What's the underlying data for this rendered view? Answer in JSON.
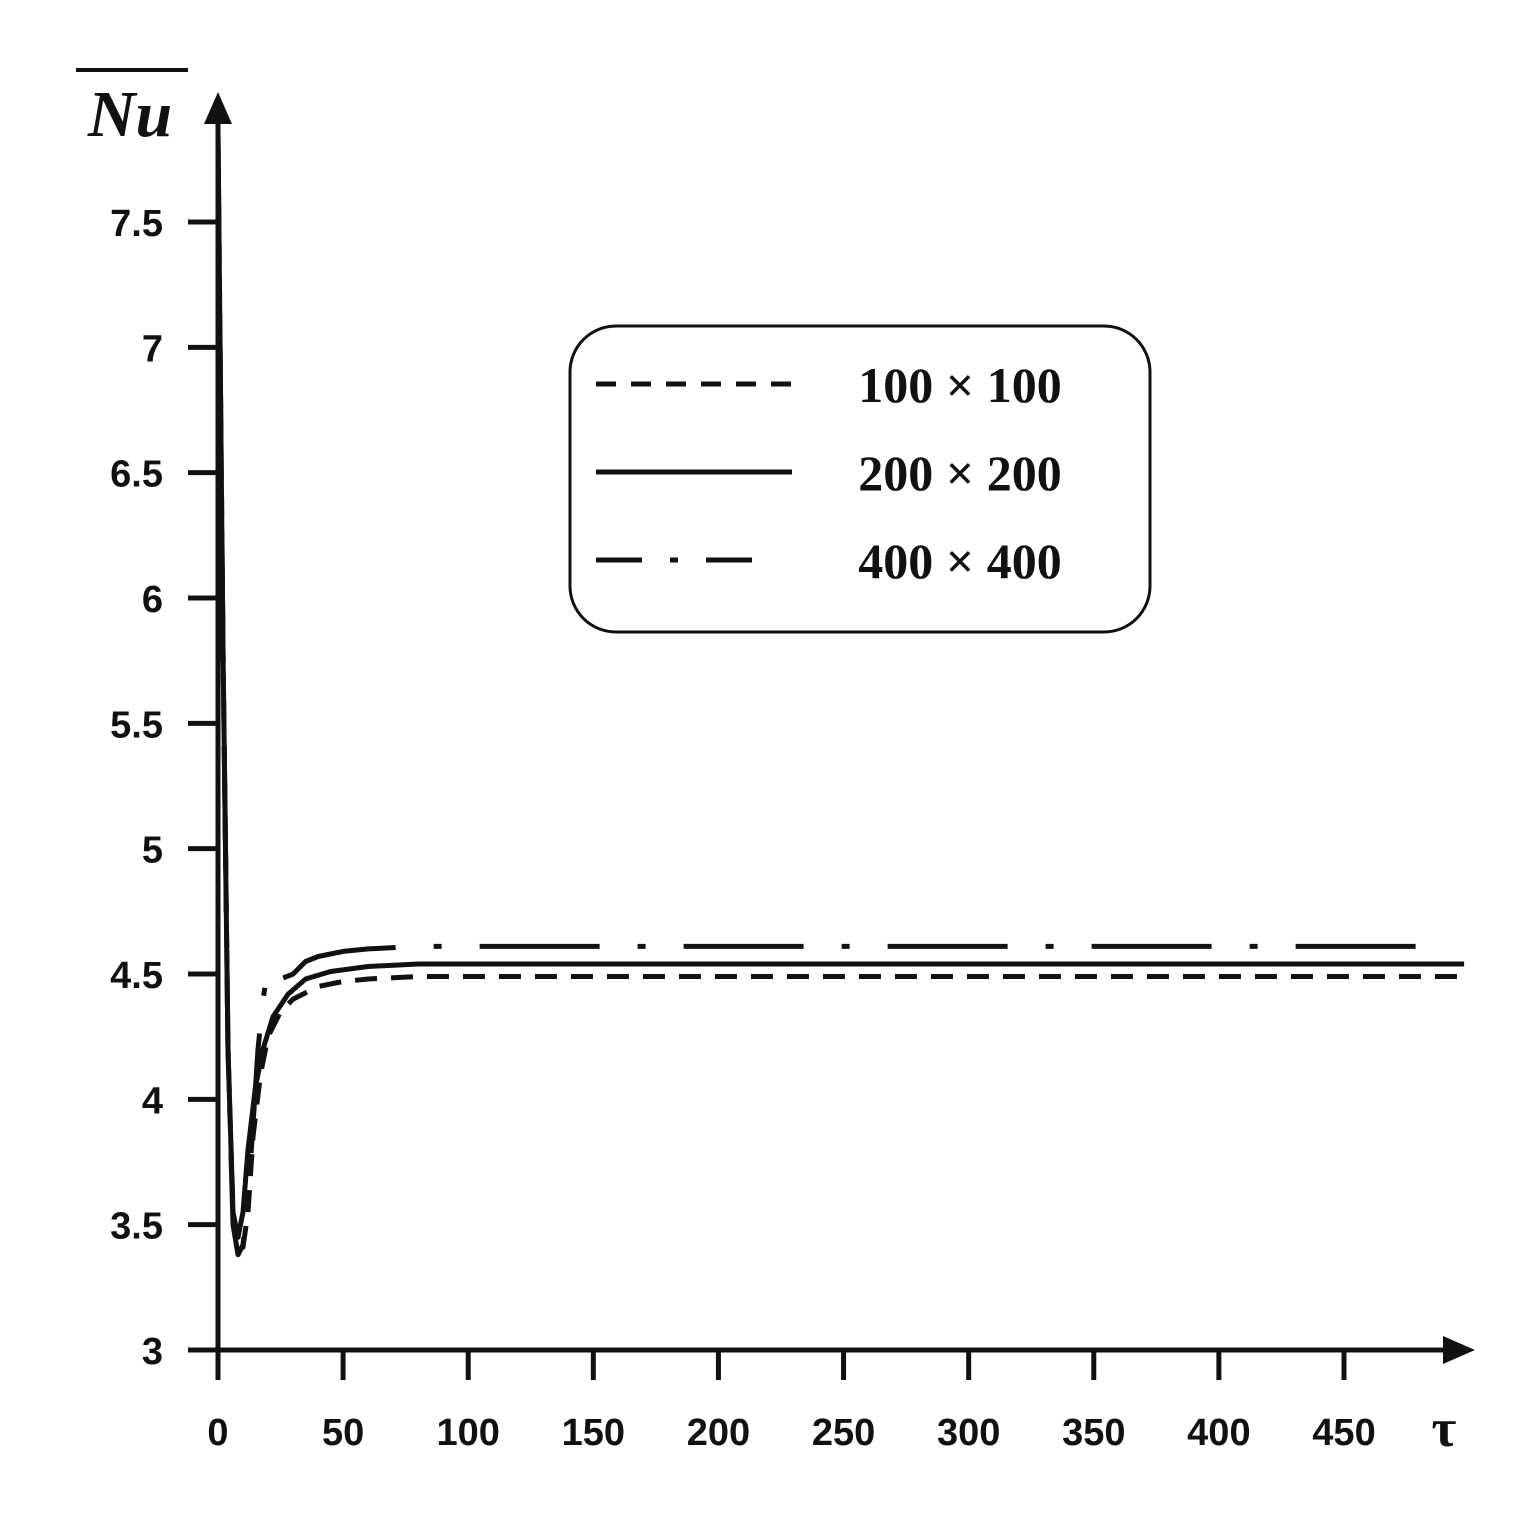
{
  "chart_data": {
    "type": "line",
    "title": "",
    "xlabel": "τ",
    "ylabel": "Nu",
    "ylabel_overline": true,
    "xlim": [
      0,
      500
    ],
    "ylim": [
      3,
      7.9
    ],
    "x_ticks": [
      0,
      50,
      100,
      150,
      200,
      250,
      300,
      350,
      400,
      450
    ],
    "x_tick_labels": [
      "0",
      "50",
      "100",
      "150",
      "200",
      "250",
      "300",
      "350",
      "400",
      "450"
    ],
    "y_ticks": [
      3,
      3.5,
      4,
      4.5,
      5,
      5.5,
      6,
      6.5,
      7,
      7.5
    ],
    "y_tick_labels": [
      "3",
      "3.5",
      "4",
      "4.5",
      "5",
      "5.5",
      "6",
      "6.5",
      "7",
      "7.5"
    ],
    "grid": false,
    "legend_position": "top-center",
    "line_color": "#111111",
    "series": [
      {
        "name": "100 × 100",
        "style": "dashed",
        "points": [
          [
            0,
            7.85
          ],
          [
            2,
            5.8
          ],
          [
            4,
            4.2
          ],
          [
            6,
            3.55
          ],
          [
            8,
            3.42
          ],
          [
            10,
            3.41
          ],
          [
            12,
            3.55
          ],
          [
            14,
            3.85
          ],
          [
            17,
            4.1
          ],
          [
            20,
            4.25
          ],
          [
            25,
            4.35
          ],
          [
            30,
            4.4
          ],
          [
            40,
            4.45
          ],
          [
            50,
            4.47
          ],
          [
            60,
            4.48
          ],
          [
            80,
            4.49
          ],
          [
            100,
            4.49
          ],
          [
            200,
            4.49
          ],
          [
            300,
            4.49
          ],
          [
            400,
            4.49
          ],
          [
            498,
            4.49
          ]
        ]
      },
      {
        "name": "200 × 200",
        "style": "solid",
        "points": [
          [
            0,
            7.85
          ],
          [
            2,
            5.8
          ],
          [
            4,
            4.2
          ],
          [
            6,
            3.55
          ],
          [
            8,
            3.45
          ],
          [
            10,
            3.55
          ],
          [
            12,
            3.8
          ],
          [
            15,
            4.05
          ],
          [
            18,
            4.2
          ],
          [
            22,
            4.33
          ],
          [
            28,
            4.42
          ],
          [
            35,
            4.48
          ],
          [
            45,
            4.51
          ],
          [
            60,
            4.53
          ],
          [
            80,
            4.54
          ],
          [
            100,
            4.54
          ],
          [
            200,
            4.54
          ],
          [
            300,
            4.54
          ],
          [
            400,
            4.54
          ],
          [
            498,
            4.54
          ]
        ]
      },
      {
        "name": "400 × 400",
        "style": "dashdot",
        "points": [
          [
            0,
            7.85
          ],
          [
            2,
            5.8
          ],
          [
            4,
            4.2
          ],
          [
            6,
            3.5
          ],
          [
            8,
            3.38
          ],
          [
            10,
            3.42
          ],
          [
            12,
            3.6
          ],
          [
            14,
            3.9
          ],
          [
            16,
            4.2
          ],
          [
            18,
            4.4
          ],
          [
            20,
            4.52
          ],
          [
            25,
            4.48
          ],
          [
            30,
            4.5
          ],
          [
            35,
            4.55
          ],
          [
            40,
            4.57
          ],
          [
            50,
            4.59
          ],
          [
            60,
            4.6
          ],
          [
            80,
            4.61
          ],
          [
            100,
            4.61
          ],
          [
            200,
            4.61
          ],
          [
            300,
            4.61
          ],
          [
            400,
            4.61
          ],
          [
            490,
            4.61
          ]
        ]
      }
    ]
  }
}
